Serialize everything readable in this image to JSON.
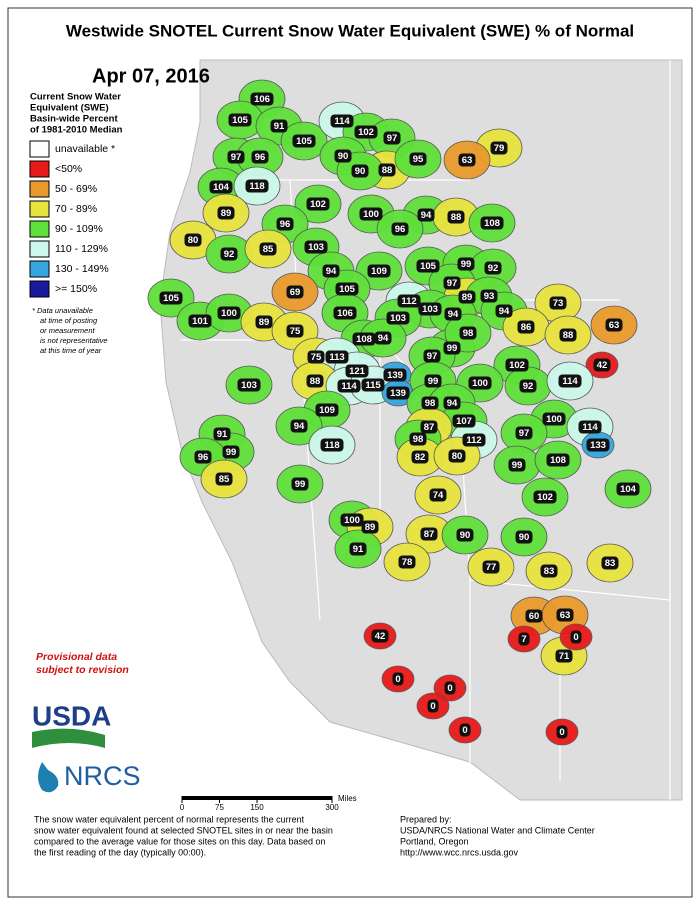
{
  "title": "Westwide SNOTEL Current Snow Water Equivalent (SWE) % of Normal",
  "date": "Apr 07, 2016",
  "legend": {
    "title": [
      "Current Snow Water",
      "Equivalent (SWE)",
      "Basin-wide Percent",
      "of 1981-2010 Median"
    ],
    "items": [
      {
        "label": "unavailable *",
        "color": "#ffffff"
      },
      {
        "label": "<50%",
        "color": "#e8191b"
      },
      {
        "label": "50 - 69%",
        "color": "#e99a2c"
      },
      {
        "label": "70 - 89%",
        "color": "#e8e43e"
      },
      {
        "label": "90 - 109%",
        "color": "#5fe03a"
      },
      {
        "label": "110 - 129%",
        "color": "#cdf8ec"
      },
      {
        "label": "130 - 149%",
        "color": "#35a6e0"
      },
      {
        "label": ">= 150%",
        "color": "#1a1a9c"
      }
    ],
    "note": [
      "*  Data unavailable",
      "at time of posting",
      "or measurement",
      "is not representative",
      "at this time of year"
    ]
  },
  "provisional": [
    "Provisional data",
    "subject to revision"
  ],
  "logos": {
    "usda": "USDA",
    "nrcs": "NRCS"
  },
  "scale": {
    "ticks": [
      0,
      75,
      150,
      300
    ],
    "unit": "Miles"
  },
  "footer": {
    "description": [
      "The snow water equivalent percent of normal represents the current",
      "snow water equivalent found at selected SNOTEL sites in or near the basin",
      "compared to the average value for those sites on this day. Data based on",
      "the first reading of the day (typically 00:00)."
    ],
    "prepared": [
      "Prepared by:",
      "USDA/NRCS National Water and Climate Center",
      "Portland, Oregon",
      "http://www.wcc.nrcs.usda.gov"
    ]
  },
  "basins": [
    106,
    105,
    91,
    105,
    114,
    102,
    97,
    79,
    97,
    96,
    90,
    88,
    95,
    63,
    104,
    118,
    90,
    102,
    89,
    100,
    94,
    88,
    108,
    96,
    80,
    96,
    92,
    85,
    103,
    109,
    105,
    99,
    92,
    94,
    97,
    105,
    69,
    112,
    89,
    93,
    73,
    105,
    103,
    94,
    94,
    63,
    101,
    100,
    89,
    106,
    103,
    86,
    88,
    75,
    108,
    94,
    99,
    98,
    42,
    75,
    113,
    97,
    102,
    121,
    139,
    88,
    114,
    115,
    139,
    99,
    100,
    92,
    114,
    103,
    98,
    94,
    109,
    107,
    100,
    114,
    94,
    87,
    97,
    112,
    133,
    91,
    98,
    118,
    99,
    96,
    82,
    80,
    99,
    108,
    85,
    99,
    74,
    102,
    104,
    100,
    89,
    87,
    90,
    90,
    91,
    78,
    77,
    83,
    83,
    60,
    63,
    7,
    42,
    71,
    0,
    0,
    0,
    0,
    0,
    0
  ]
}
